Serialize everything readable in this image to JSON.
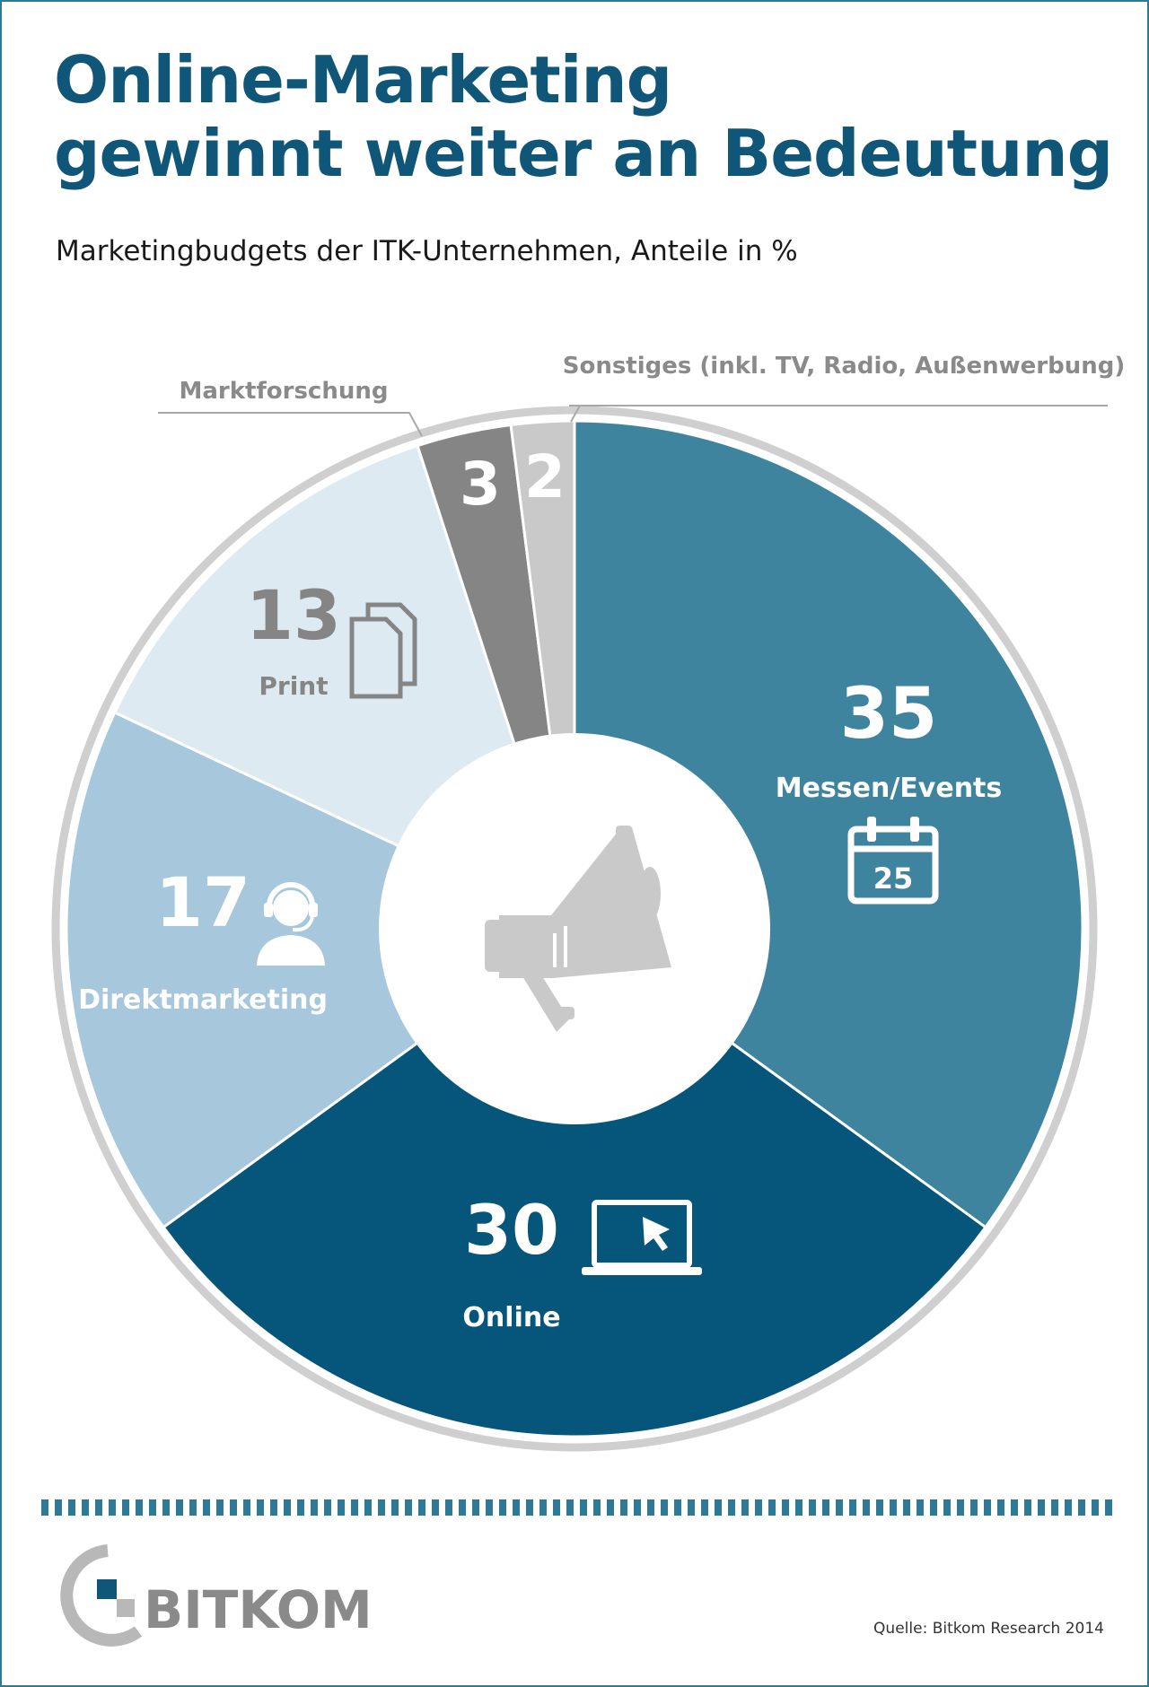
{
  "header": {
    "title_line1": "Online-Marketing",
    "title_line2": "gewinnt weiter an Bedeutung",
    "subtitle": "Marketingbudgets der ITK-Unternehmen, Anteile in %"
  },
  "chart_data": {
    "type": "pie",
    "title": "Online-Marketing gewinnt weiter an Bedeutung",
    "subtitle": "Marketingbudgets der ITK-Unternehmen, Anteile in %",
    "categories": [
      "Messen/Events",
      "Online",
      "Direktmarketing",
      "Print",
      "Marktforschung",
      "Sonstiges (inkl. TV, Radio, Außenwerbung)"
    ],
    "values": [
      35,
      30,
      17,
      13,
      3,
      2
    ],
    "colors": [
      "#3f849e",
      "#05567a",
      "#a6c7dc",
      "#deeaf2",
      "#858585",
      "#c9c9c9"
    ],
    "donut": true
  },
  "icons": {
    "messen": "calendar-icon",
    "online": "laptop-cursor-icon",
    "direkt": "headset-agent-icon",
    "print": "documents-icon",
    "center": "megaphone-icon"
  },
  "calendar_day": "25",
  "footer": {
    "logo_text": "BITKOM",
    "source": "Quelle: Bitkom Research 2014"
  }
}
